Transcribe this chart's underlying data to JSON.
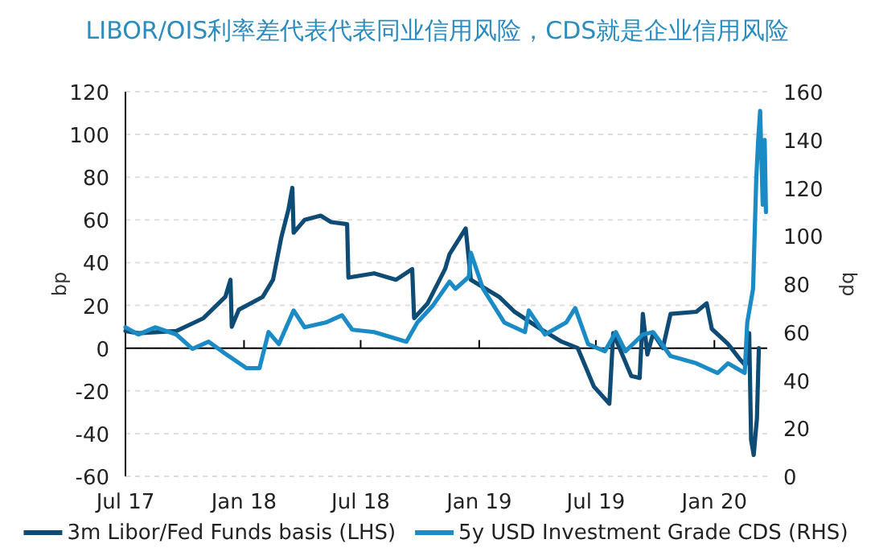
{
  "chart_data": {
    "type": "line",
    "title": "LIBOR/OIS利率差代表代表同业信用风险，CDS就是企业信用风险",
    "ylabel": "bp",
    "y2label": "bp",
    "xlim": [
      "2017-07-01",
      "2020-03-23"
    ],
    "xticks": [
      {
        "value": "2017-07-01",
        "label": "Jul 17"
      },
      {
        "value": "2018-01-01",
        "label": "Jan 18"
      },
      {
        "value": "2018-07-01",
        "label": "Jul 18"
      },
      {
        "value": "2019-01-01",
        "label": "Jan 19"
      },
      {
        "value": "2019-07-01",
        "label": "Jul 19"
      },
      {
        "value": "2020-01-01",
        "label": "Jan 20"
      }
    ],
    "ylim": [
      -60,
      120
    ],
    "yticks": [
      -60,
      -40,
      -20,
      0,
      20,
      40,
      60,
      80,
      100,
      120
    ],
    "y2lim": [
      0,
      160
    ],
    "y2ticks": [
      0,
      20,
      40,
      60,
      80,
      100,
      120,
      140,
      160
    ],
    "grid": "y",
    "legend": "bottom",
    "series": [
      {
        "name": "3m Libor/Fed Funds basis (LHS)",
        "color": "#0f4c75",
        "axis": "y",
        "x": [
          "2017-07-01",
          "2017-07-21",
          "2017-09-18",
          "2017-10-30",
          "2017-12-03",
          "2017-12-11",
          "2017-12-13",
          "2017-12-24",
          "2018-01-30",
          "2018-02-15",
          "2018-02-28",
          "2018-03-11",
          "2018-03-17",
          "2018-03-19",
          "2018-04-05",
          "2018-04-30",
          "2018-05-16",
          "2018-06-10",
          "2018-06-12",
          "2018-07-22",
          "2018-08-25",
          "2018-09-19",
          "2018-09-22",
          "2018-10-13",
          "2018-11-09",
          "2018-11-16",
          "2018-12-11",
          "2018-12-19",
          "2019-02-01",
          "2019-02-25",
          "2019-04-06",
          "2019-05-09",
          "2019-06-03",
          "2019-06-28",
          "2019-07-22",
          "2019-07-28",
          "2019-08-25",
          "2019-09-07",
          "2019-09-12",
          "2019-09-19",
          "2019-09-28",
          "2019-10-13",
          "2019-10-25",
          "2019-12-04",
          "2019-12-20",
          "2019-12-28",
          "2020-01-22",
          "2020-02-09",
          "2020-02-18",
          "2020-02-24",
          "2020-02-27",
          "2020-03-02",
          "2020-03-07",
          "2020-03-10"
        ],
        "values": [
          8,
          7,
          8,
          14,
          24,
          32,
          10,
          18,
          24,
          32,
          52,
          65,
          75,
          54,
          60,
          62,
          59,
          58,
          33,
          35,
          32,
          37,
          14,
          21,
          37,
          44,
          56,
          32,
          24,
          17,
          9,
          3,
          0,
          -18,
          -26,
          7,
          -13,
          -14,
          16,
          -3,
          7,
          0,
          16,
          17,
          21,
          9,
          2,
          -5,
          -8,
          7,
          -43,
          -50,
          -33,
          0
        ]
      },
      {
        "name": "5y USD Investment Grade CDS (RHS)",
        "color": "#1b8bc6",
        "axis": "y2",
        "x": [
          "2017-07-01",
          "2017-07-21",
          "2017-08-16",
          "2017-09-18",
          "2017-10-13",
          "2017-11-07",
          "2017-12-03",
          "2018-01-05",
          "2018-01-25",
          "2018-02-08",
          "2018-02-24",
          "2018-03-19",
          "2018-04-05",
          "2018-05-08",
          "2018-06-02",
          "2018-06-18",
          "2018-07-22",
          "2018-09-10",
          "2018-09-27",
          "2018-10-21",
          "2018-11-16",
          "2018-11-25",
          "2018-12-16",
          "2018-12-19",
          "2019-01-07",
          "2019-02-09",
          "2019-03-13",
          "2019-03-19",
          "2019-04-13",
          "2019-05-16",
          "2019-05-30",
          "2019-06-19",
          "2019-07-15",
          "2019-08-01",
          "2019-08-16",
          "2019-09-12",
          "2019-09-28",
          "2019-10-25",
          "2019-12-04",
          "2020-01-06",
          "2020-01-22",
          "2020-02-17",
          "2020-02-21",
          "2020-03-01",
          "2020-03-06",
          "2020-03-09",
          "2020-03-12",
          "2020-03-16",
          "2020-03-19",
          "2020-03-21"
        ],
        "values": [
          62,
          59,
          62,
          59,
          53,
          56,
          51,
          45,
          45,
          60,
          55,
          69,
          62,
          64,
          67,
          61,
          60,
          56,
          64,
          71,
          81,
          78,
          83,
          93,
          78,
          64,
          60,
          69,
          59,
          64,
          70,
          55,
          52,
          60,
          52,
          59,
          60,
          50,
          47,
          43,
          47,
          43,
          64,
          78,
          124,
          140,
          152,
          113,
          140,
          110
        ]
      }
    ]
  }
}
